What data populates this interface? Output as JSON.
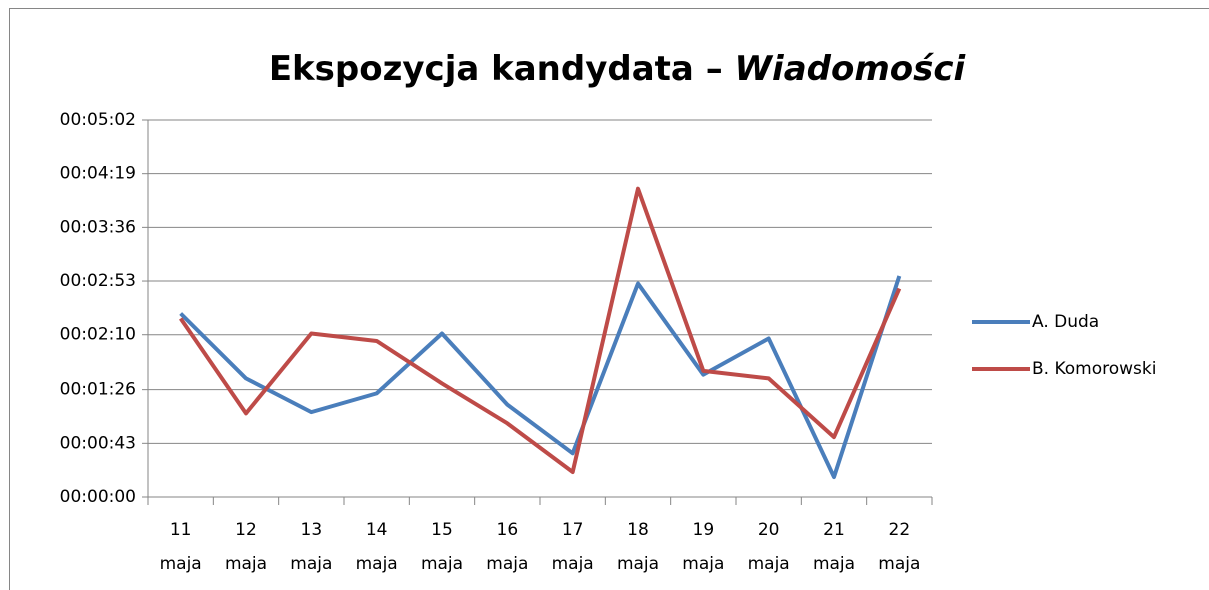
{
  "chart_data": {
    "type": "line",
    "title": "Ekspozycja kandydata – Wiadomości",
    "categories": [
      "11 maja",
      "12 maja",
      "13 maja",
      "14 maja",
      "15 maja",
      "16 maja",
      "17 maja",
      "18 maja",
      "19 maja",
      "20 maja",
      "21 maja",
      "22 maja"
    ],
    "series": [
      {
        "name": "A. Duda",
        "color": "#4a7ebb",
        "values": [
          147,
          95,
          68,
          83,
          131,
          74,
          35,
          171,
          98,
          127,
          16,
          177
        ]
      },
      {
        "name": "B. Komorowski",
        "color": "#be4b48",
        "values": [
          143,
          67,
          131,
          125,
          91,
          59,
          20,
          247,
          101,
          95,
          48,
          167
        ]
      }
    ],
    "ylim": [
      0,
      302
    ],
    "yticks": [
      {
        "value": 0,
        "label": "00:00:00"
      },
      {
        "value": 43,
        "label": "00:00:43"
      },
      {
        "value": 86,
        "label": "00:01:26"
      },
      {
        "value": 130,
        "label": "00:02:10"
      },
      {
        "value": 173,
        "label": "00:02:53"
      },
      {
        "value": 216,
        "label": "00:03:36"
      },
      {
        "value": 259,
        "label": "00:04:19"
      },
      {
        "value": 302,
        "label": "00:05:02"
      }
    ],
    "grid": true,
    "legend": "right"
  }
}
